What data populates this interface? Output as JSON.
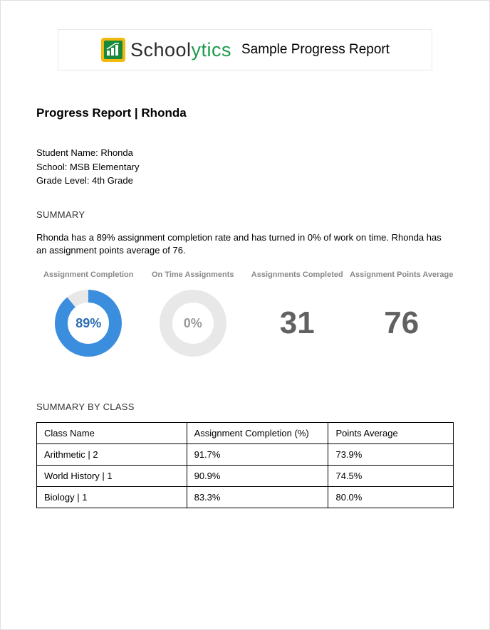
{
  "header": {
    "brand_part1": "School",
    "brand_part2": "ytics",
    "subtitle": "Sample Progress Report"
  },
  "title": "Progress Report | Rhonda",
  "student": {
    "name_line": "Student Name: Rhonda",
    "school_line": "School: MSB Elementary",
    "grade_line": "Grade Level: 4th Grade"
  },
  "summary": {
    "label": "SUMMARY",
    "text": "Rhonda has a 89% assignment completion rate and has turned in 0% of work on time. Rhonda has an assignment points average of 76."
  },
  "metrics": {
    "completion": {
      "label": "Assignment Completion",
      "value_text": "89%",
      "percent": 89,
      "fill_color": "#3b8ede",
      "track_color": "#e8e8e8",
      "text_color": "#2b6db1",
      "thickness": 18
    },
    "ontime": {
      "label": "On Time Assignments",
      "value_text": "0%",
      "percent": 0,
      "fill_color": "#3b8ede",
      "track_color": "#e8e8e8",
      "text_color": "#9a9a9a",
      "thickness": 18
    },
    "completed_count": {
      "label": "Assignments Completed",
      "value_text": "31",
      "text_color": "#616161"
    },
    "points_avg": {
      "label": "Assignment Points Average",
      "value_text": "76",
      "text_color": "#616161"
    }
  },
  "by_class": {
    "label": "SUMMARY BY CLASS",
    "columns": [
      "Class Name",
      "Assignment Completion (%)",
      "Points Average"
    ],
    "rows": [
      [
        "Arithmetic | 2",
        "91.7%",
        "73.9%"
      ],
      [
        "World History | 1",
        "90.9%",
        "74.5%"
      ],
      [
        "Biology | 1",
        "83.3%",
        "80.0%"
      ]
    ],
    "col_widths": [
      "36%",
      "34%",
      "30%"
    ]
  },
  "logo": {
    "outer_color": "#f2b90f",
    "inner_color": "#168a3a",
    "bars_color": "#ffffff"
  }
}
